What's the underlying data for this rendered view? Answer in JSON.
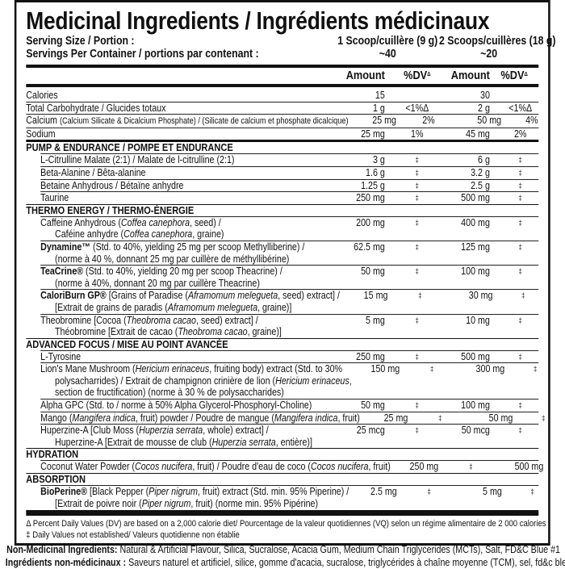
{
  "title": "Medicinal Ingredients / Ingrédients médicinaux",
  "serving_size_label": "Serving Size / Portion :",
  "servings_per_container_label": "Servings Per Container / portions par contenant :",
  "serving_1": "1 Scoop/cuillère (9 g)",
  "serving_2": "2 Scoops/cuillères (18 g)",
  "servings_1": "~40",
  "servings_2": "~20",
  "header": {
    "amount": "Amount",
    "dv": "%DV",
    "dv_mark": "Δ"
  },
  "nutrients": [
    {
      "name": [
        {
          "t": "Calories"
        }
      ],
      "a1": "15",
      "d1": "",
      "a2": "30",
      "d2": ""
    },
    {
      "name": [
        {
          "t": "Total Carbohydrate / Glucides totaux"
        }
      ],
      "a1": "1 g",
      "d1": "<1%Δ",
      "a2": "2 g",
      "d2": "<1%Δ"
    },
    {
      "name": [
        {
          "t": "Calcium "
        },
        {
          "t": "(Calcium Silicate & Dicalcium Phosphate) / (Silicate de calcium et phosphate dicalcique)",
          "s": true
        }
      ],
      "a1": "25 mg",
      "d1": "2%",
      "a2": "50 mg",
      "d2": "4%"
    },
    {
      "name": [
        {
          "t": "Sodium"
        }
      ],
      "a1": "25 mg",
      "d1": "1%",
      "a2": "45 mg",
      "d2": "2%"
    }
  ],
  "sections": [
    {
      "title": "PUMP & ENDURANCE / POMPE ET ENDURANCE",
      "items": [
        {
          "lines": [
            [
              {
                "t": "L-Citrulline Malate (2:1) / Malate de l-citrulline (2:1)"
              }
            ]
          ],
          "a1": "3 g",
          "d1": "‡",
          "a2": "6 g",
          "d2": "‡"
        },
        {
          "lines": [
            [
              {
                "t": "Beta-Alanine / Bêta-alanine"
              }
            ]
          ],
          "a1": "1.6 g",
          "d1": "‡",
          "a2": "3.2 g",
          "d2": "‡"
        },
        {
          "lines": [
            [
              {
                "t": "Betaine Anhydrous / Bétaïne anhydre"
              }
            ]
          ],
          "a1": "1.25 g",
          "d1": "‡",
          "a2": "2.5 g",
          "d2": "‡"
        },
        {
          "lines": [
            [
              {
                "t": "Taurine"
              }
            ]
          ],
          "a1": "250 mg",
          "d1": "‡",
          "a2": "500 mg",
          "d2": "‡"
        }
      ]
    },
    {
      "title": "THERMO ENERGY / THERMO-ÉNERGIE",
      "items": [
        {
          "lines": [
            [
              {
                "t": "Caffeine Anhydrous ("
              },
              {
                "t": "Coffea canephora",
                "i": true
              },
              {
                "t": ", seed) /"
              }
            ],
            [
              {
                "t": "Caféine anhydre ("
              },
              {
                "t": "Coffea canephora",
                "i": true
              },
              {
                "t": ", graine)"
              }
            ]
          ],
          "a1": "200 mg",
          "d1": "‡",
          "a2": "400 mg",
          "d2": "‡"
        },
        {
          "lines": [
            [
              {
                "t": "Dynamine™",
                "b": true
              },
              {
                "t": " (Std. to 40%, yielding 25 mg per scoop Methylliberine) /"
              }
            ],
            [
              {
                "t": "(norme à 40 %, donnant 25 mg par cuillère de méthyllibérine)"
              }
            ]
          ],
          "a1": "62.5 mg",
          "d1": "‡",
          "a2": "125 mg",
          "d2": "‡"
        },
        {
          "lines": [
            [
              {
                "t": "TeaCrine®",
                "b": true
              },
              {
                "t": " (Std. to 40%, yielding 20 mg per scoop Theacrine) /"
              }
            ],
            [
              {
                "t": "(norme à 40%, donnant 20 mg par cuillère Theacrine)"
              }
            ]
          ],
          "a1": "50 mg",
          "d1": "‡",
          "a2": "100 mg",
          "d2": "‡"
        },
        {
          "lines": [
            [
              {
                "t": "CaloriBurn GP®",
                "b": true
              },
              {
                "t": " [Grains of Paradise ("
              },
              {
                "t": "Aframomum melegueta",
                "i": true
              },
              {
                "t": ", seed) extract] /"
              }
            ],
            [
              {
                "t": "[Extrait de grains de paradis ("
              },
              {
                "t": "Aframomum melegueta",
                "i": true
              },
              {
                "t": ", graine)]"
              }
            ]
          ],
          "a1": "15 mg",
          "d1": "‡",
          "a2": "30 mg",
          "d2": "‡"
        },
        {
          "lines": [
            [
              {
                "t": "Theobromine [Cocoa ("
              },
              {
                "t": "Theobroma cacao",
                "i": true
              },
              {
                "t": ", seed) extract] /"
              }
            ],
            [
              {
                "t": "Théobromine [Extrait de cacao ("
              },
              {
                "t": "Theobroma cacao",
                "i": true
              },
              {
                "t": ", graine)]"
              }
            ]
          ],
          "a1": "5 mg",
          "d1": "‡",
          "a2": "10 mg",
          "d2": "‡"
        }
      ]
    },
    {
      "title": "ADVANCED FOCUS / MISE AU POINT AVANCÉE",
      "items": [
        {
          "lines": [
            [
              {
                "t": "L-Tyrosine"
              }
            ]
          ],
          "a1": "250 mg",
          "d1": "‡",
          "a2": "500 mg",
          "d2": "‡"
        },
        {
          "lines": [
            [
              {
                "t": "Lion's Mane Mushroom ("
              },
              {
                "t": "Hericium erinaceus",
                "i": true
              },
              {
                "t": ", fruiting body) extract (Std. to 30%"
              }
            ],
            [
              {
                "t": "polysacharrides) / Extrait de champignon crinière de lion ("
              },
              {
                "t": "Hericium erinaceus",
                "i": true
              },
              {
                "t": ","
              }
            ],
            [
              {
                "t": "section de fructification) (norme à 30 % de polysaccharides)"
              }
            ]
          ],
          "a1": "150 mg",
          "d1": "‡",
          "a2": "300 mg",
          "d2": "‡"
        },
        {
          "lines": [
            [
              {
                "t": "Alpha GPC (Std. to / norme à 50% Alpha Glycerol-Phosphoryl-Choline)"
              }
            ]
          ],
          "a1": "50 mg",
          "d1": "‡",
          "a2": "100 mg",
          "d2": "‡"
        },
        {
          "lines": [
            [
              {
                "t": "Mango ("
              },
              {
                "t": "Mangifera indica",
                "i": true
              },
              {
                "t": ", fruit) powder / Poudre de mangue ("
              },
              {
                "t": "Mangifera indica",
                "i": true
              },
              {
                "t": ", fruit)"
              }
            ]
          ],
          "a1": "25 mg",
          "d1": "‡",
          "a2": "50 mg",
          "d2": "‡"
        },
        {
          "lines": [
            [
              {
                "t": "Huperzine-A [Club Moss ("
              },
              {
                "t": "Huperzia serrata",
                "i": true
              },
              {
                "t": ", whole) extract] /"
              }
            ],
            [
              {
                "t": "Huperzine-A [Extrait de mousse de club ("
              },
              {
                "t": "Huperzia serrata",
                "i": true
              },
              {
                "t": ", entière)]"
              }
            ]
          ],
          "a1": "25 mcg",
          "d1": "‡",
          "a2": "50 mcg",
          "d2": "‡"
        }
      ]
    },
    {
      "title": "HYDRATION",
      "items": [
        {
          "lines": [
            [
              {
                "t": "Coconut Water Powder ("
              },
              {
                "t": "Cocos nucifera",
                "i": true
              },
              {
                "t": ", fruit) / Poudre d'eau de coco ("
              },
              {
                "t": "Cocos nucifera",
                "i": true
              },
              {
                "t": ", fruit)"
              }
            ]
          ],
          "a1": "250 mg",
          "d1": "‡",
          "a2": "500 mg",
          "d2": "‡"
        }
      ]
    },
    {
      "title": "ABSORPTION",
      "items": [
        {
          "lines": [
            [
              {
                "t": "BioPerine®",
                "b": true
              },
              {
                "t": " [Black Pepper ("
              },
              {
                "t": "Piper nigrum",
                "i": true
              },
              {
                "t": ", fruit) extract (Std. min. 95% Piperine) /"
              }
            ],
            [
              {
                "t": "[Extrait de poivre noir ("
              },
              {
                "t": "Piper nigrum",
                "i": true
              },
              {
                "t": ", fruit) (norme min. 95% Pipérine)"
              }
            ]
          ],
          "a1": "2.5 mg",
          "d1": "‡",
          "a2": "5 mg",
          "d2": "‡"
        }
      ]
    }
  ],
  "footnotes": [
    "Δ Percent Daily Values (DV) are based on a 2,000 calorie diet/ Pourcentage de la valeur quotidiennes (VQ) selon un régime alimentaire de 2 000 calories",
    "‡ Daily Values not established/ Valeurs quotidienne non établie"
  ],
  "non_medicinal": {
    "en_label": "Non-Medicinal Ingredients:",
    "en_text": " Natural & Artificial Flavour, Silica, Sucralose, Acacia Gum, Medium Chain Triglycerides (MCTs), Salt, FD&C Blue #1",
    "fr_label": "Ingrédients non-médicinaux :",
    "fr_text": " Saveurs naturel et artificiel, silice, gomme d'acacia, sucralose, triglycérides à chaîne moyenne (TCM), sel, fd&c bleu #1"
  }
}
